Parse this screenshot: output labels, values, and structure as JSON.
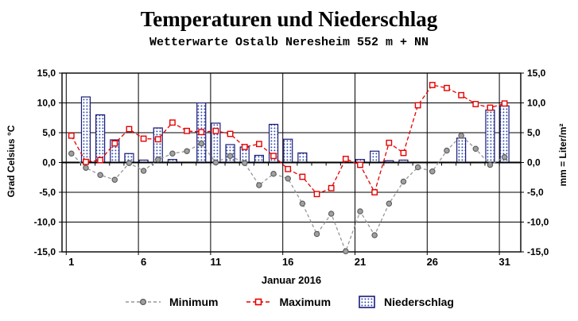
{
  "header": {
    "title": "Temperaturen und Niederschlag",
    "subtitle": "Wetterwarte Ostalb Neresheim 552 m + NN"
  },
  "axes": {
    "y_left_title": "Grad Celsius °C",
    "y_right_title": "mm = Liter/m²",
    "x_title": "Januar 2016",
    "y_ticks": [
      "15,0",
      "10,0",
      "5,0",
      "0,0",
      "-5,0",
      "-10,0",
      "-15,0"
    ],
    "x_ticks": [
      1,
      6,
      11,
      16,
      21,
      26,
      31
    ]
  },
  "legend": [
    {
      "label": "Minimum",
      "swatch": "gray-line-circle-marker"
    },
    {
      "label": "Maximum",
      "swatch": "red-dashed-line-square-marker"
    },
    {
      "label": "Niederschlag",
      "swatch": "blue-dot-hatched-box"
    }
  ],
  "colors": {
    "min_line": "#969696",
    "min_marker_fill": "#a0a0a0",
    "min_marker_edge": "#5a5a5a",
    "max_line": "#e60000",
    "max_marker_fill": "#ffffff",
    "bar_dot": "#3350b4",
    "bar_edge": "#1b1b78",
    "grid": "#000000"
  },
  "chart_data": {
    "type": "combo line+bar",
    "title": "Temperaturen und Niederschlag",
    "subtitle": "Wetterwarte Ostalb Neresheim 552 m + NN",
    "xlabel": "Januar 2016",
    "ylabel_left": "Grad Celsius °C",
    "ylabel_right": "mm = Liter/m²",
    "ylim": [
      -15,
      15
    ],
    "y_gridlines": [
      15,
      10,
      5,
      0,
      -5,
      -10,
      -15
    ],
    "x_gridline_days": [
      1,
      6,
      11,
      16,
      21,
      26,
      31
    ],
    "legend_position": "bottom",
    "x": [
      1,
      2,
      3,
      4,
      5,
      6,
      7,
      8,
      9,
      10,
      11,
      12,
      13,
      14,
      15,
      16,
      17,
      18,
      19,
      20,
      21,
      22,
      23,
      24,
      25,
      26,
      27,
      28,
      29,
      30,
      31
    ],
    "series": [
      {
        "name": "Minimum",
        "type": "line",
        "unit": "°C",
        "values": [
          1.5,
          -0.9,
          -2.1,
          -2.9,
          -0.1,
          -1.4,
          0.5,
          1.5,
          1.9,
          3.2,
          0.0,
          1.1,
          -0.1,
          -3.8,
          -1.9,
          -2.7,
          -6.9,
          -12.0,
          -8.6,
          -14.9,
          -8.2,
          -12.2,
          -6.9,
          -3.2,
          -0.8,
          -1.5,
          2.0,
          4.5,
          2.3,
          -0.4,
          0.9
        ]
      },
      {
        "name": "Maximum",
        "type": "line",
        "unit": "°C",
        "values": [
          4.5,
          0.1,
          0.4,
          3.2,
          5.6,
          4.0,
          3.9,
          6.7,
          5.3,
          5.1,
          5.3,
          4.8,
          2.6,
          3.1,
          1.1,
          -1.1,
          -2.4,
          -5.3,
          -4.3,
          0.6,
          -0.4,
          -5.0,
          3.3,
          1.6,
          9.6,
          13.0,
          12.5,
          11.3,
          9.8,
          9.2,
          9.9
        ]
      },
      {
        "name": "Niederschlag",
        "type": "bar",
        "unit": "mm = Liter/m²",
        "values": [
          0,
          11.0,
          8.0,
          3.8,
          1.5,
          0.4,
          5.8,
          0.5,
          0,
          10.0,
          6.6,
          3.0,
          2.6,
          1.2,
          6.4,
          3.9,
          1.6,
          0,
          0,
          0,
          0.5,
          1.9,
          0.3,
          0.4,
          0,
          0,
          0,
          4.1,
          0,
          8.8,
          9.5
        ]
      }
    ]
  }
}
